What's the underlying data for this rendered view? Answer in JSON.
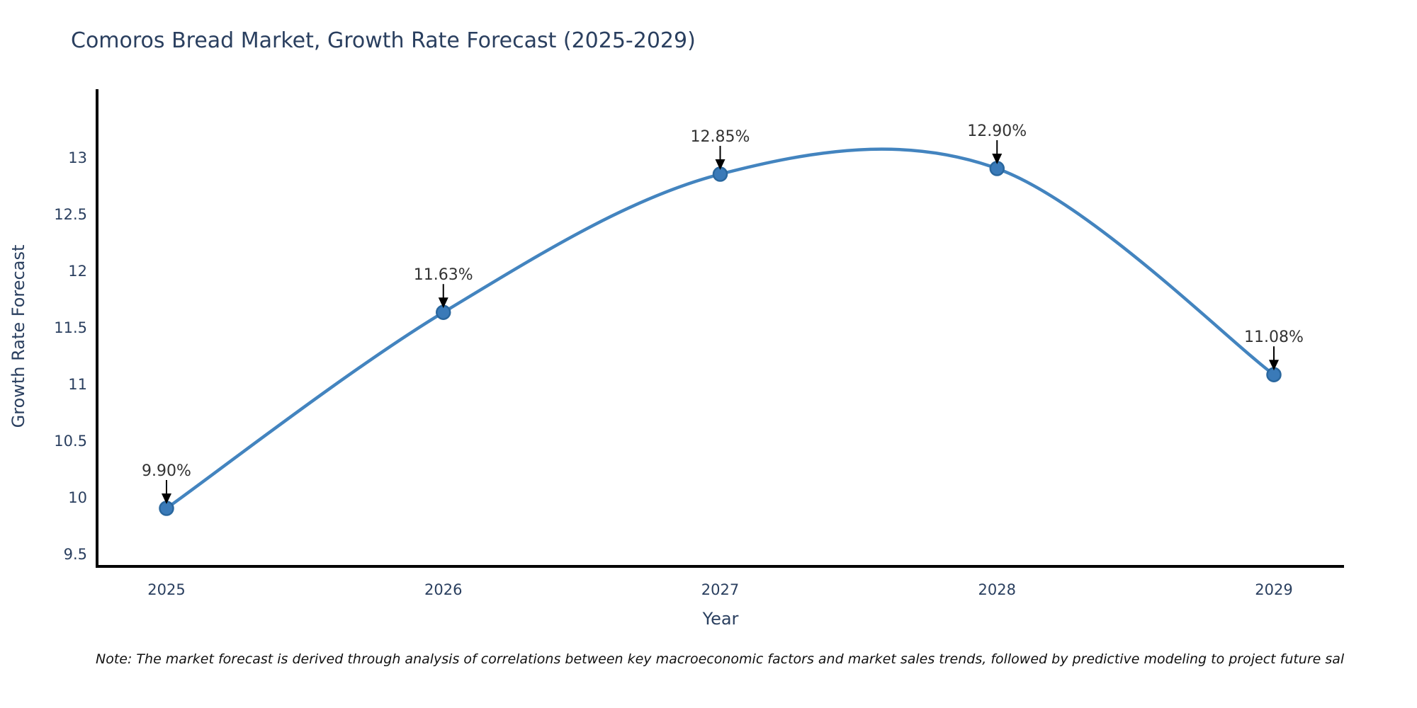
{
  "page": {
    "title": "Comoros Bread Market, Growth Rate Forecast (2025-2029)",
    "footnote": "Note: The market forecast is derived through analysis of correlations between key macroeconomic factors and market sales trends, followed by predictive modeling to project future sal"
  },
  "chart_data": {
    "type": "line",
    "title": "Comoros Bread Market, Growth Rate Forecast (2025-2029)",
    "xlabel": "Year",
    "ylabel": "Growth Rate Forecast",
    "x": [
      2025,
      2026,
      2027,
      2028,
      2029
    ],
    "series": [
      {
        "name": "Growth Rate Forecast",
        "values": [
          9.9,
          11.63,
          12.85,
          12.9,
          11.08
        ]
      }
    ],
    "point_labels": [
      "9.90%",
      "11.63%",
      "12.85%",
      "12.90%",
      "11.08%"
    ],
    "y_ticks": [
      9.5,
      10,
      10.5,
      11,
      11.5,
      12,
      12.5,
      13
    ],
    "ylim": [
      9.39,
      13.6
    ],
    "xlim": [
      2024.75,
      2029.25
    ],
    "grid": false,
    "legend_position": "none",
    "smooth_spline": true,
    "annotations_arrows": true,
    "colors": {
      "line": "#4384bf",
      "marker_fill": "#3a7ab8",
      "marker_stroke": "#2a679e",
      "axis": "#000000",
      "tick_text": "#2a3f5f",
      "title_text": "#2a3f5f",
      "annotation_text": "#333333",
      "arrow": "#000000",
      "note_text": "#111111"
    }
  }
}
